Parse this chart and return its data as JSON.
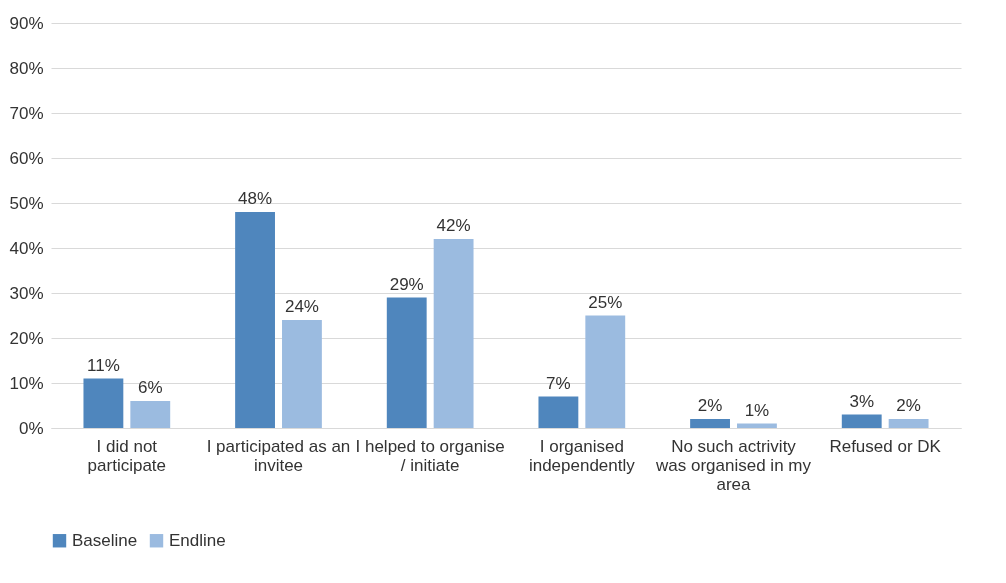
{
  "chart_data": {
    "type": "bar",
    "categories": [
      "I did not participate",
      "I participated as an invitee",
      "I helped to organise / initiate",
      "I organised independently",
      "No such actrivity was organised in my area",
      "Refused or DK"
    ],
    "series": [
      {
        "name": "Baseline",
        "color": "#4f86bd",
        "values": [
          11,
          48,
          29,
          7,
          2,
          3
        ],
        "value_labels": [
          "11%",
          "48%",
          "29%",
          "7%",
          "2%",
          "3%"
        ]
      },
      {
        "name": "Endline",
        "color": "#9bbbe0",
        "values": [
          6,
          24,
          42,
          25,
          1,
          2
        ],
        "value_labels": [
          "6%",
          "24%",
          "42%",
          "25%",
          "1%",
          "2%"
        ]
      }
    ],
    "ylim": [
      0,
      90
    ],
    "yticks": [
      {
        "value": 0,
        "label": "0%"
      },
      {
        "value": 10,
        "label": "10%"
      },
      {
        "value": 20,
        "label": "20%"
      },
      {
        "value": 30,
        "label": "30%"
      },
      {
        "value": 40,
        "label": "40%"
      },
      {
        "value": 50,
        "label": "50%"
      },
      {
        "value": 60,
        "label": "60%"
      },
      {
        "value": 70,
        "label": "70%"
      },
      {
        "value": 80,
        "label": "80%"
      },
      {
        "value": 90,
        "label": "90%"
      }
    ],
    "grid": "y",
    "legend": "bottom"
  }
}
